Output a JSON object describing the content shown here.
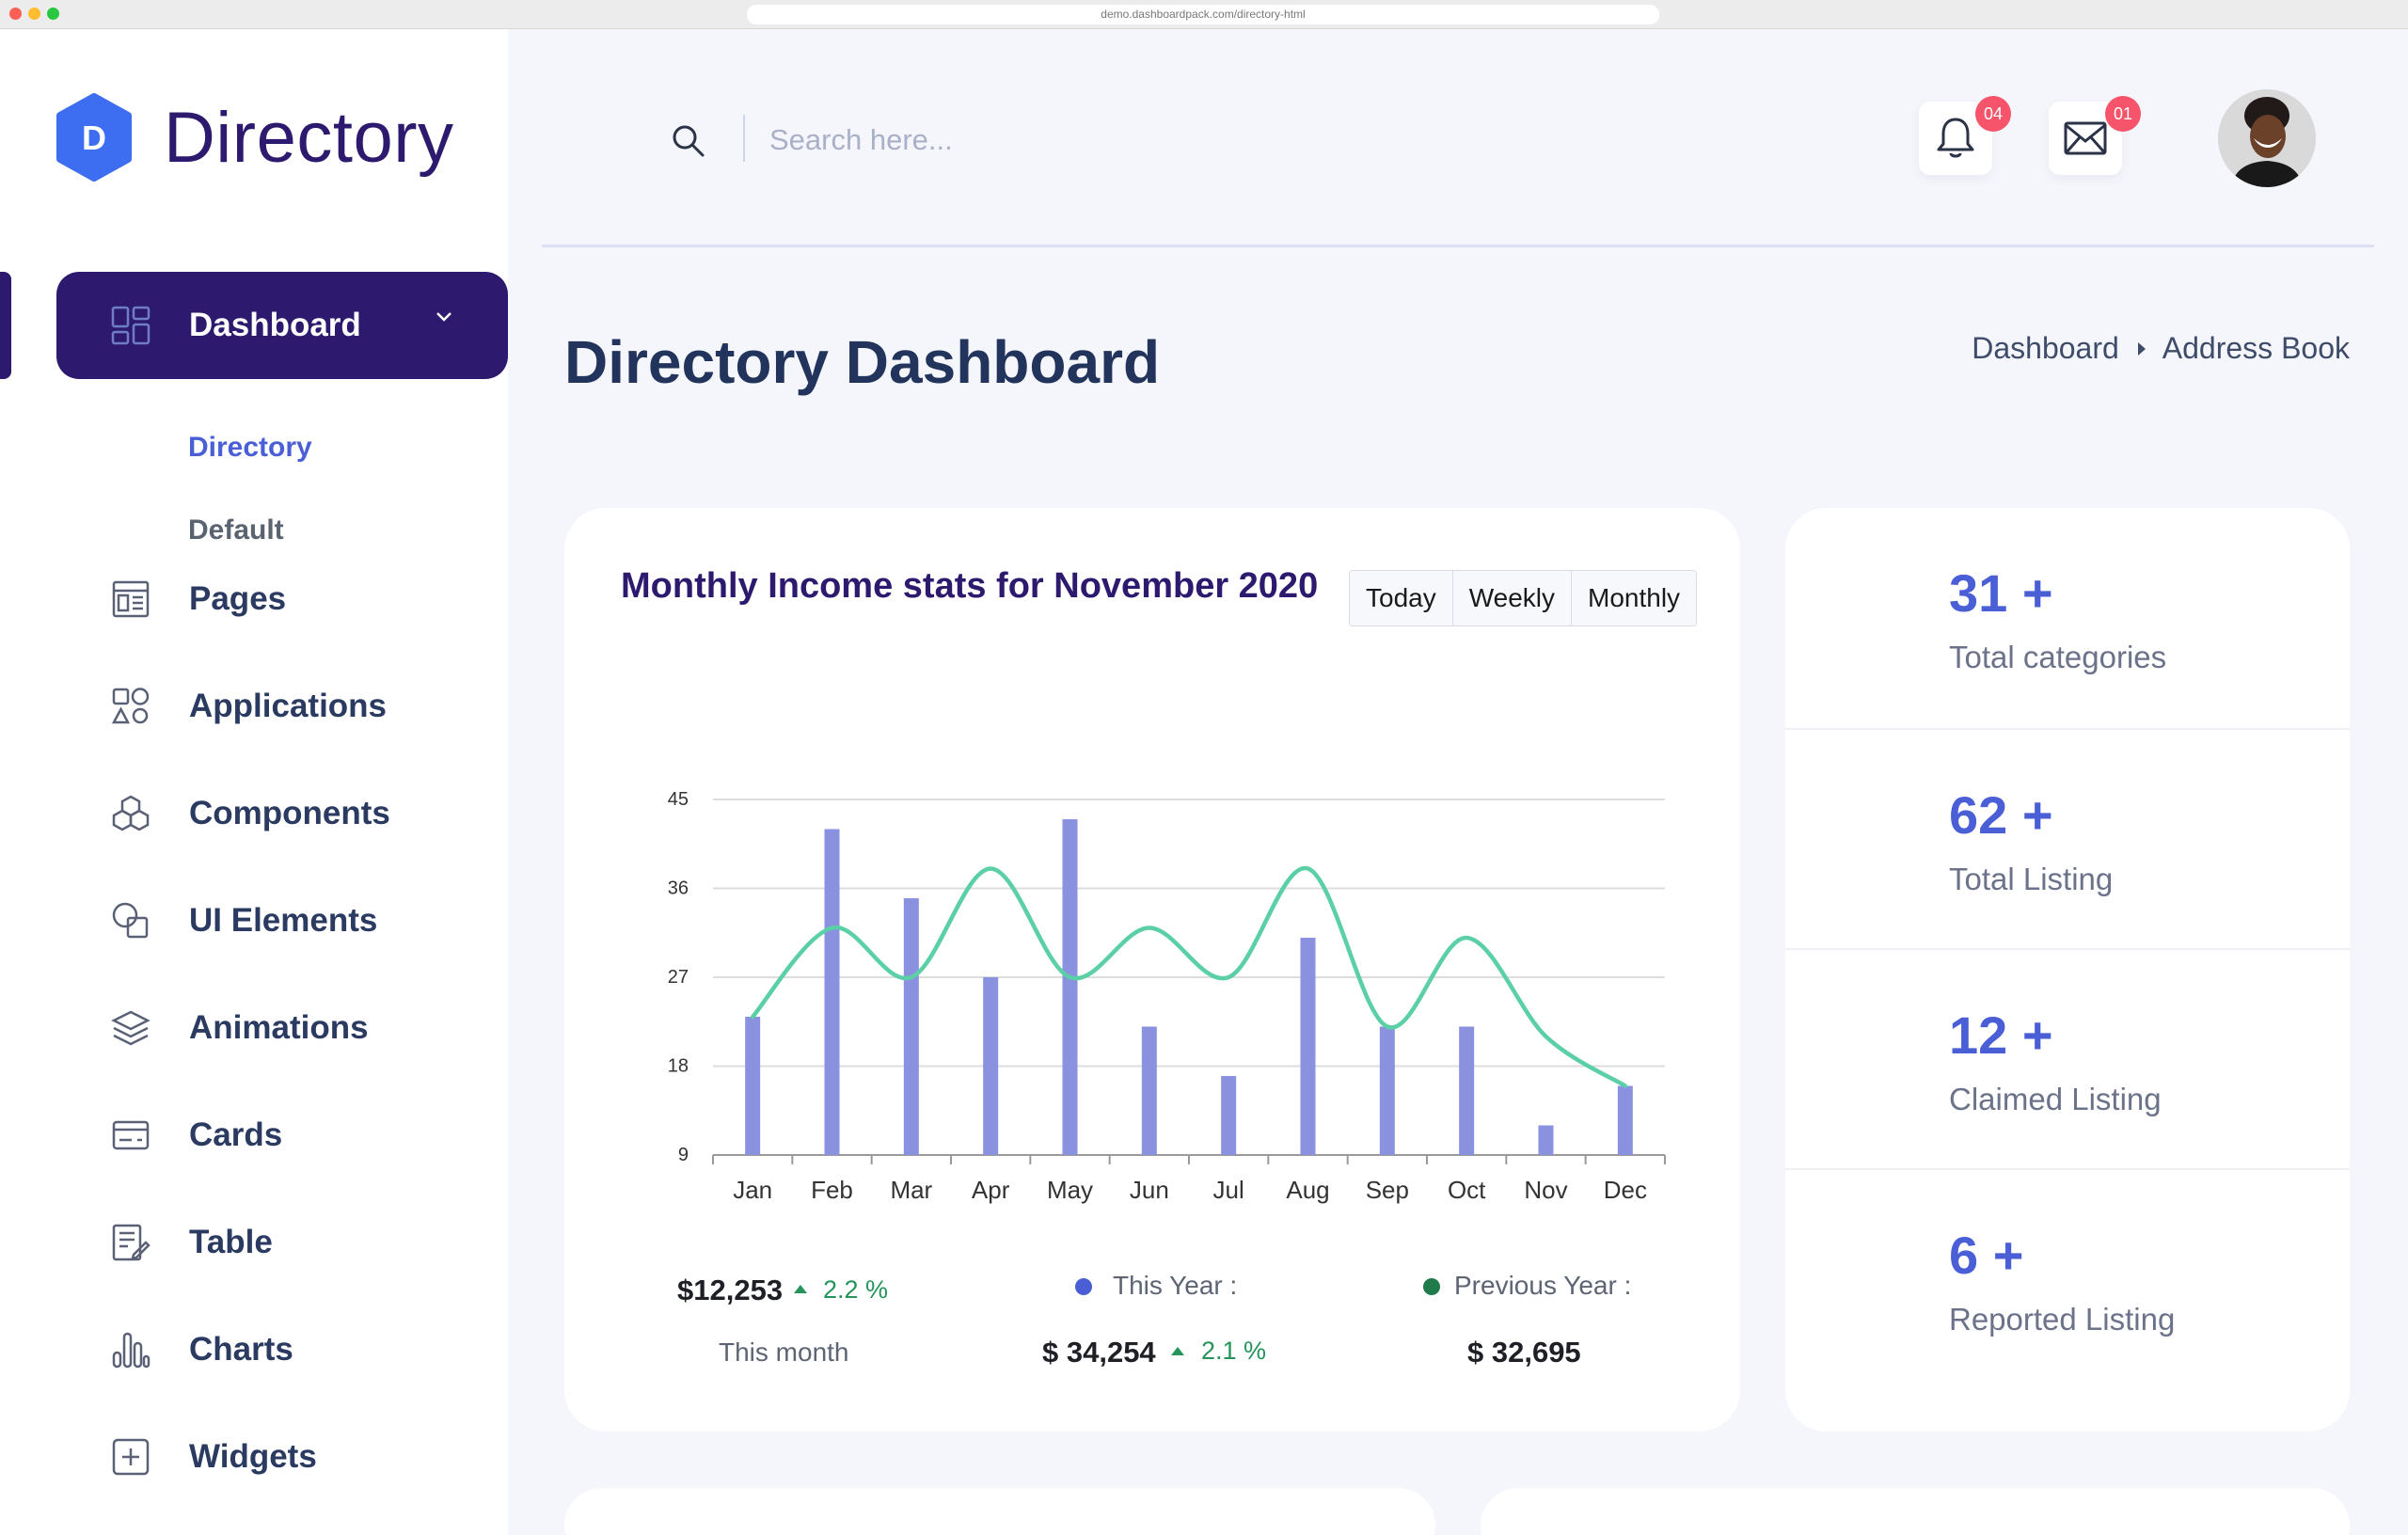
{
  "browser": {
    "url": "demo.dashboardpack.com/directory-html"
  },
  "logo": {
    "letter": "D",
    "text": "Directory"
  },
  "sidebar": {
    "active": {
      "label": "Dashboard"
    },
    "subitems": [
      {
        "label": "Directory"
      },
      {
        "label": "Default"
      }
    ],
    "items": [
      {
        "label": "Pages",
        "icon": "pages-icon"
      },
      {
        "label": "Applications",
        "icon": "applications-icon"
      },
      {
        "label": "Components",
        "icon": "components-icon"
      },
      {
        "label": "UI Elements",
        "icon": "ui-elements-icon"
      },
      {
        "label": "Animations",
        "icon": "animations-icon"
      },
      {
        "label": "Cards",
        "icon": "cards-icon"
      },
      {
        "label": "Table",
        "icon": "table-icon"
      },
      {
        "label": "Charts",
        "icon": "charts-icon"
      },
      {
        "label": "Widgets",
        "icon": "widgets-icon"
      }
    ]
  },
  "header": {
    "search_placeholder": "Search here...",
    "notifications_count": "04",
    "messages_count": "01"
  },
  "page": {
    "title": "Directory Dashboard",
    "breadcrumb": [
      "Dashboard",
      "Address Book"
    ]
  },
  "income_card": {
    "title": "Monthly Income stats for November 2020",
    "tabs": [
      "Today",
      "Weekly",
      "Monthly"
    ],
    "this_month_value": "$12,253",
    "this_month_change": "2.2 %",
    "this_month_label": "This month",
    "this_year_label": "This Year :",
    "this_year_value": "$ 34,254",
    "this_year_change": "2.1 %",
    "previous_year_label": "Previous Year :",
    "previous_year_value": "$ 32,695"
  },
  "chart_data": {
    "type": "bar",
    "categories": [
      "Jan",
      "Feb",
      "Mar",
      "Apr",
      "May",
      "Jun",
      "Jul",
      "Aug",
      "Sep",
      "Oct",
      "Nov",
      "Dec"
    ],
    "series": [
      {
        "type": "bar",
        "color": "#8a92e0",
        "values": [
          23,
          42,
          35,
          27,
          43,
          22,
          17,
          31,
          22,
          22,
          12,
          16
        ]
      },
      {
        "type": "line",
        "color": "#5bcfa6",
        "values": [
          23,
          32,
          27,
          38,
          27,
          32,
          27,
          38,
          22,
          31,
          21,
          16
        ]
      }
    ],
    "ylim": [
      9,
      45
    ],
    "yticks": [
      9,
      18,
      27,
      36,
      45
    ],
    "grid": true
  },
  "stats": [
    {
      "value": "31 +",
      "label": "Total categories"
    },
    {
      "value": "62 +",
      "label": "Total Listing"
    },
    {
      "value": "12 +",
      "label": "Claimed Listing"
    },
    {
      "value": "6 +",
      "label": "Reported Listing"
    }
  ],
  "colors": {
    "brand": "#2d1a6e",
    "accent": "#4a5fd6",
    "bar": "#8a92e0",
    "line": "#5bcfa6",
    "badge": "#f5546a",
    "positive": "#25935a"
  }
}
